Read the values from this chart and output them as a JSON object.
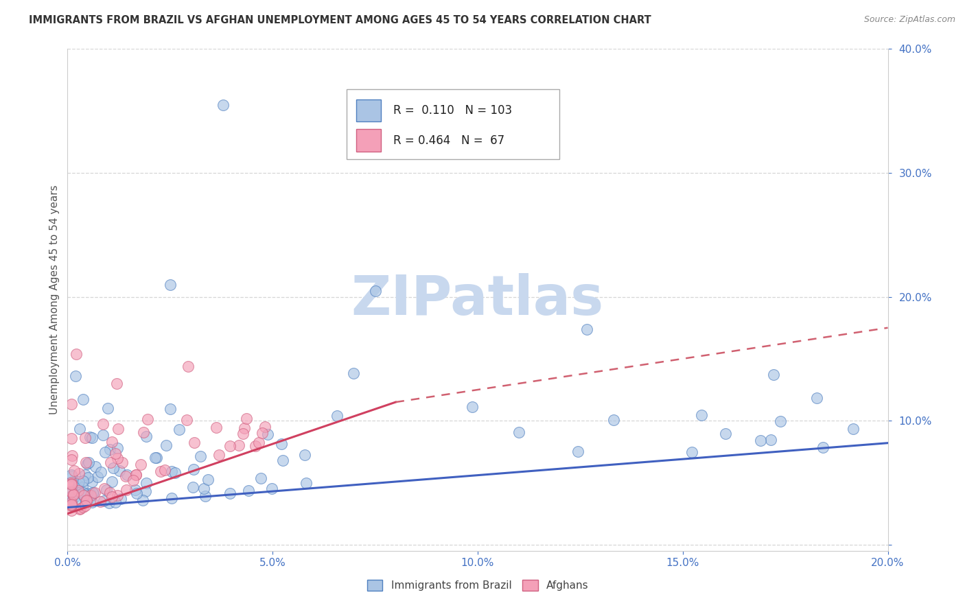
{
  "title": "IMMIGRANTS FROM BRAZIL VS AFGHAN UNEMPLOYMENT AMONG AGES 45 TO 54 YEARS CORRELATION CHART",
  "source": "Source: ZipAtlas.com",
  "ylabel": "Unemployment Among Ages 45 to 54 years",
  "xlim": [
    0.0,
    0.2
  ],
  "ylim": [
    -0.005,
    0.4
  ],
  "yticks": [
    0.0,
    0.1,
    0.2,
    0.3,
    0.4
  ],
  "xticks": [
    0.0,
    0.05,
    0.1,
    0.15,
    0.2
  ],
  "legend_R1": "0.110",
  "legend_N1": "103",
  "legend_R2": "0.464",
  "legend_N2": "67",
  "color_brazil": "#aac4e4",
  "color_afghan": "#f4a0b8",
  "color_brazil_edge": "#5080c0",
  "color_afghan_edge": "#d06080",
  "color_brazil_line": "#4060c0",
  "color_afghan_line_solid": "#d04060",
  "color_afghan_line_dash": "#d06070",
  "color_axis_labels": "#4472c4",
  "color_grid": "#cccccc",
  "color_title": "#333333",
  "color_source": "#888888",
  "watermark_text": "ZIPatlas",
  "watermark_color": "#c8d8ee",
  "brazil_line": [
    0.0,
    0.2,
    0.03,
    0.082
  ],
  "afghan_line_solid": [
    0.0,
    0.08,
    0.025,
    0.115
  ],
  "afghan_line_dash": [
    0.08,
    0.2,
    0.115,
    0.175
  ]
}
